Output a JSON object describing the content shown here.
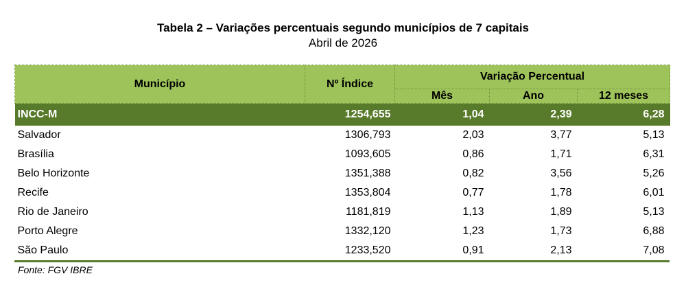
{
  "title": "Tabela 2 – Variações percentuais segundo municípios de 7 capitais",
  "subtitle": "Abril de 2026",
  "headers": {
    "municipio": "Município",
    "indice": "Nº Índice",
    "variacao": "Variação Percentual",
    "mes": "Mês",
    "ano": "Ano",
    "meses12": "12 meses"
  },
  "incc": {
    "name": "INCC-M",
    "indice": "1254,655",
    "mes": "1,04",
    "ano": "2,39",
    "meses12": "6,28"
  },
  "rows": [
    {
      "name": "Salvador",
      "indice": "1306,793",
      "mes": "2,03",
      "ano": "3,77",
      "meses12": "5,13"
    },
    {
      "name": "Brasília",
      "indice": "1093,605",
      "mes": "0,86",
      "ano": "1,71",
      "meses12": "6,31"
    },
    {
      "name": "Belo Horizonte",
      "indice": "1351,388",
      "mes": "0,82",
      "ano": "3,56",
      "meses12": "5,26"
    },
    {
      "name": "Recife",
      "indice": "1353,804",
      "mes": "0,77",
      "ano": "1,78",
      "meses12": "6,01"
    },
    {
      "name": "Rio de Janeiro",
      "indice": "1181,819",
      "mes": "1,13",
      "ano": "1,89",
      "meses12": "5,13"
    },
    {
      "name": "Porto Alegre",
      "indice": "1332,120",
      "mes": "1,23",
      "ano": "1,73",
      "meses12": "6,88"
    },
    {
      "name": "São Paulo",
      "indice": "1233,520",
      "mes": "0,91",
      "ano": "2,13",
      "meses12": "7,08"
    }
  ],
  "source": "Fonte: FGV IBRE",
  "colors": {
    "header_green": "#9ec35a",
    "dark_green": "#577a2b"
  }
}
